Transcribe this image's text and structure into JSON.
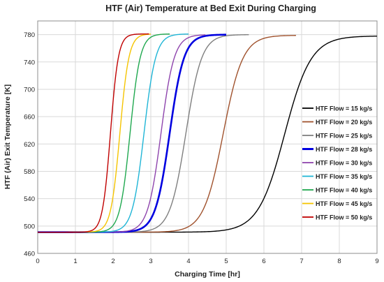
{
  "chart_data": {
    "type": "line",
    "title": "HTF (Air) Temperature  at Bed Exit During Charging",
    "xlabel": "Charging Time [hr]",
    "ylabel": "HTF (Air) Exit Temperature [K]",
    "xlim": [
      0,
      9
    ],
    "ylim": [
      460,
      800
    ],
    "xticks": [
      "0",
      "1",
      "2",
      "3",
      "4",
      "5",
      "6",
      "7",
      "8",
      "9"
    ],
    "yticks": [
      "460",
      "500",
      "540",
      "580",
      "620",
      "660",
      "700",
      "740",
      "780"
    ],
    "grid": true,
    "legend_position": "right",
    "series": [
      {
        "name": "HTF Flow = 15 kg/s",
        "color": "#000000",
        "t50": 6.55,
        "width": 0.35,
        "t_start": 0.0,
        "t_end": 9.0,
        "t_min": 491,
        "t_max": 778,
        "stroke": 1.4
      },
      {
        "name": "HTF Flow = 20 kg/s",
        "color": "#a0522d",
        "t50": 4.92,
        "width": 0.26,
        "t_start": 0.0,
        "t_end": 6.85,
        "t_min": 491,
        "t_max": 779,
        "stroke": 1.4
      },
      {
        "name": "HTF Flow = 25 kg/s",
        "color": "#7f7f7f",
        "t50": 3.93,
        "width": 0.21,
        "t_start": 0.0,
        "t_end": 5.6,
        "t_min": 491,
        "t_max": 780,
        "stroke": 1.4
      },
      {
        "name": "HTF Flow = 28 kg/s",
        "color": "#0000e0",
        "t50": 3.5,
        "width": 0.19,
        "t_start": 0.0,
        "t_end": 5.0,
        "t_min": 491,
        "t_max": 780,
        "stroke": 2.6
      },
      {
        "name": "HTF Flow = 30 kg/s",
        "color": "#8e44ad",
        "t50": 3.27,
        "width": 0.175,
        "t_start": 0.0,
        "t_end": 4.45,
        "t_min": 491,
        "t_max": 780,
        "stroke": 1.4
      },
      {
        "name": "HTF Flow = 35 kg/s",
        "color": "#1fb5d6",
        "t50": 2.82,
        "width": 0.155,
        "t_start": 0.0,
        "t_end": 4.0,
        "t_min": 491,
        "t_max": 781,
        "stroke": 1.4
      },
      {
        "name": "HTF Flow = 40 kg/s",
        "color": "#1fa84f",
        "t50": 2.45,
        "width": 0.135,
        "t_start": 0.0,
        "t_end": 3.5,
        "t_min": 491,
        "t_max": 781,
        "stroke": 1.4
      },
      {
        "name": "HTF Flow = 45 kg/s",
        "color": "#f5c400",
        "t50": 2.18,
        "width": 0.12,
        "t_start": 0.0,
        "t_end": 3.0,
        "t_min": 491,
        "t_max": 781,
        "stroke": 1.4
      },
      {
        "name": "HTF Flow = 50 kg/s",
        "color": "#c00000",
        "t50": 1.93,
        "width": 0.105,
        "t_start": 0.0,
        "t_end": 2.95,
        "t_min": 491,
        "t_max": 781,
        "stroke": 1.4
      }
    ]
  }
}
